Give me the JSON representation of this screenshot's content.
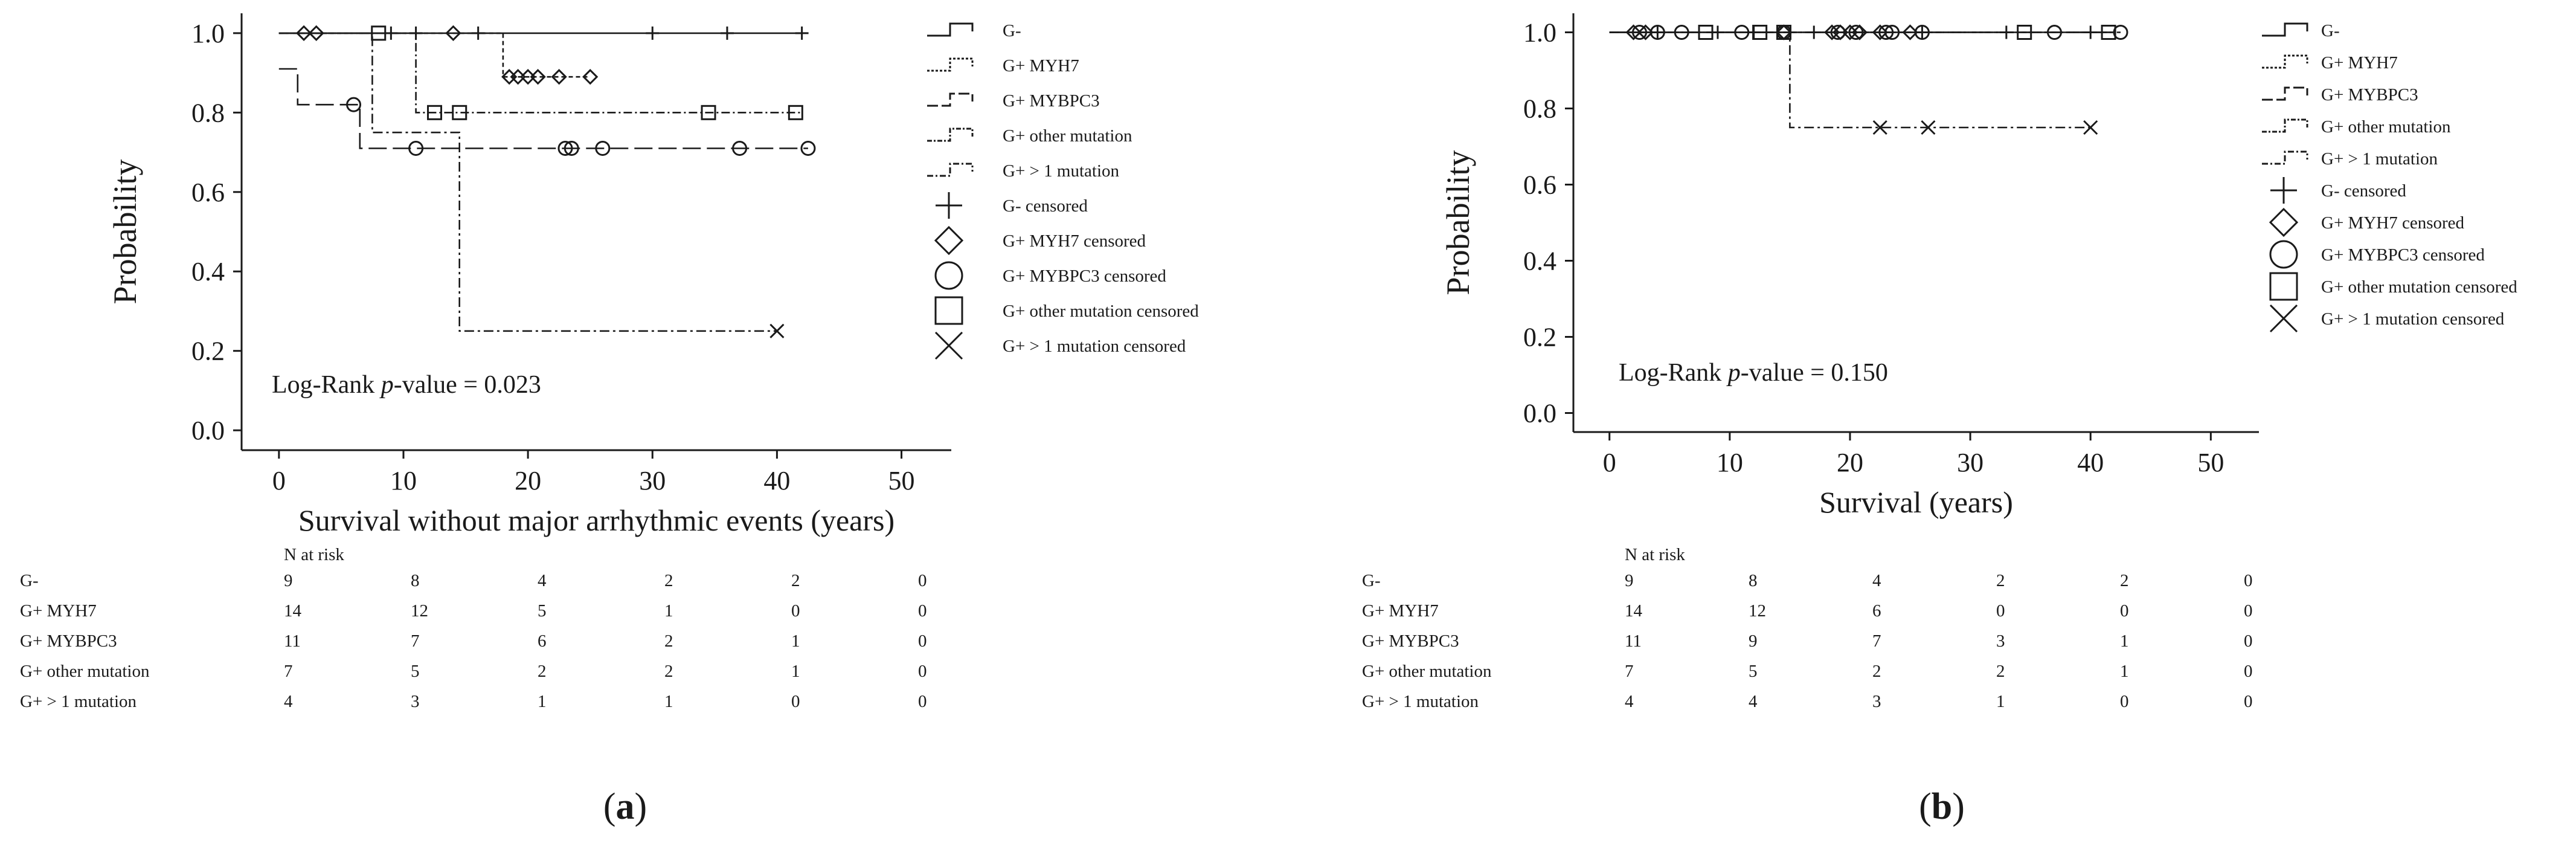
{
  "chart_data": [
    {
      "type": "line",
      "panel_label": "a",
      "xlabel": "Survival without major arrhythmic events (years)",
      "ylabel": "Probability",
      "xlim": [
        -3,
        54
      ],
      "ylim": [
        -0.05,
        1.05
      ],
      "xticks": [
        0,
        10,
        20,
        30,
        40,
        50
      ],
      "yticks": [
        0.0,
        0.2,
        0.4,
        0.6,
        0.8,
        1.0
      ],
      "ytick_labels": [
        "0.0",
        "0.2",
        "0.4",
        "0.6",
        "0.8",
        "1.0"
      ],
      "annotation": {
        "prefix": "Log-Rank ",
        "italic": "p",
        "suffix": "-value = 0.023"
      },
      "legend": [
        "G-",
        "G+ MYH7",
        "G+ MYBPC3",
        "G+ other mutation",
        "G+ > 1 mutation",
        "G- censored",
        "G+ MYH7 censored",
        "G+ MYBPC3 censored",
        "G+ other mutation censored",
        "G+ > 1 mutation censored"
      ],
      "series": [
        {
          "name": "G-",
          "dash": "",
          "x": [
            0,
            42
          ],
          "y": [
            1.0,
            1.0
          ],
          "censored": [
            [
              9,
              1.0
            ],
            [
              11,
              1.0
            ],
            [
              16,
              1.0
            ],
            [
              30,
              1.0
            ],
            [
              36,
              1.0
            ],
            [
              42,
              1.0
            ]
          ],
          "marker": "plus"
        },
        {
          "name": "G+ MYH7",
          "dash": "7 5",
          "x": [
            0,
            18,
            18,
            25
          ],
          "y": [
            1.0,
            1.0,
            0.89,
            0.89
          ],
          "censored": [
            [
              2,
              1.0
            ],
            [
              3,
              1.0
            ],
            [
              14,
              1.0
            ],
            [
              18.5,
              0.89
            ],
            [
              19.2,
              0.89
            ],
            [
              20.0,
              0.89
            ],
            [
              20.8,
              0.89
            ],
            [
              22.5,
              0.89
            ],
            [
              25.0,
              0.89
            ]
          ],
          "marker": "diamond"
        },
        {
          "name": "G+ MYBPC3",
          "dash": "30 10",
          "x": [
            0,
            1.5,
            1.5,
            6.5,
            6.5,
            42.5
          ],
          "y": [
            0.91,
            0.91,
            0.82,
            0.82,
            0.71,
            0.71
          ],
          "censored": [
            [
              6,
              0.82
            ],
            [
              11,
              0.71
            ],
            [
              23,
              0.71
            ],
            [
              23.5,
              0.71
            ],
            [
              26,
              0.71
            ],
            [
              37,
              0.71
            ],
            [
              42.5,
              0.71
            ]
          ],
          "marker": "circle"
        },
        {
          "name": "G+ other mutation",
          "dash": "14 5 3 5",
          "x": [
            0,
            11,
            11,
            42
          ],
          "y": [
            1.0,
            1.0,
            0.8,
            0.8
          ],
          "censored": [
            [
              8,
              1.0
            ],
            [
              12.5,
              0.8
            ],
            [
              14.5,
              0.8
            ],
            [
              34.5,
              0.8
            ],
            [
              41.5,
              0.8
            ]
          ],
          "marker": "square"
        },
        {
          "name": "G+ > 1 mutation",
          "dash": "16 6 4 6",
          "x": [
            0,
            7.5,
            7.5,
            14.5,
            14.5,
            40
          ],
          "y": [
            1.0,
            1.0,
            0.75,
            0.75,
            0.25,
            0.25
          ],
          "censored": [
            [
              40,
              0.25
            ]
          ],
          "marker": "x"
        }
      ],
      "risk_table": {
        "header": "N at risk",
        "rows": [
          {
            "group": "G-",
            "values": [
              "9",
              "8",
              "4",
              "2",
              "2",
              "0"
            ]
          },
          {
            "group": "G+ MYH7",
            "values": [
              "14",
              "12",
              "5",
              "1",
              "0",
              "0"
            ]
          },
          {
            "group": "G+ MYBPC3",
            "values": [
              "11",
              "7",
              "6",
              "2",
              "1",
              "0"
            ]
          },
          {
            "group": "G+ other mutation",
            "values": [
              "7",
              "5",
              "2",
              "2",
              "1",
              "0"
            ]
          },
          {
            "group": "G+ > 1 mutation",
            "values": [
              "4",
              "3",
              "1",
              "1",
              "0",
              "0"
            ]
          }
        ]
      }
    },
    {
      "type": "line",
      "panel_label": "b",
      "xlabel": "Survival (years)",
      "ylabel": "Probability",
      "xlim": [
        -3,
        54
      ],
      "ylim": [
        -0.05,
        1.05
      ],
      "xticks": [
        0,
        10,
        20,
        30,
        40,
        50
      ],
      "yticks": [
        0.0,
        0.2,
        0.4,
        0.6,
        0.8,
        1.0
      ],
      "ytick_labels": [
        "0.0",
        "0.2",
        "0.4",
        "0.6",
        "0.8",
        "1.0"
      ],
      "annotation": {
        "prefix": "Log-Rank ",
        "italic": "p",
        "suffix": "-value = 0.150"
      },
      "legend": [
        "G-",
        "G+ MYH7",
        "G+ MYBPC3",
        "G+ other mutation",
        "G+ > 1 mutation",
        "G- censored",
        "G+ MYH7 censored",
        "G+ MYBPC3 censored",
        "G+ other mutation censored",
        "G+ > 1 mutation censored"
      ],
      "series": [
        {
          "name": "G-",
          "dash": "",
          "x": [
            0,
            42
          ],
          "y": [
            1.0,
            1.0
          ],
          "censored": [
            [
              4,
              1.0
            ],
            [
              9,
              1.0
            ],
            [
              12,
              1.0
            ],
            [
              17,
              1.0
            ],
            [
              26,
              1.0
            ],
            [
              33,
              1.0
            ],
            [
              40,
              1.0
            ]
          ],
          "marker": "plus"
        },
        {
          "name": "G+ MYH7",
          "dash": "7 5",
          "x": [
            0,
            42
          ],
          "y": [
            1.0,
            1.0
          ],
          "censored": [
            [
              2,
              1.0
            ],
            [
              3,
              1.0
            ],
            [
              14.5,
              1.0
            ],
            [
              18.5,
              1.0
            ],
            [
              19.2,
              1.0
            ],
            [
              20.0,
              1.0
            ],
            [
              20.8,
              1.0
            ],
            [
              22.5,
              1.0
            ],
            [
              25.0,
              1.0
            ]
          ],
          "marker": "diamond"
        },
        {
          "name": "G+ MYBPC3",
          "dash": "30 10",
          "x": [
            0,
            42.5
          ],
          "y": [
            1.0,
            1.0
          ],
          "censored": [
            [
              2.5,
              1.0
            ],
            [
              4,
              1.0
            ],
            [
              6,
              1.0
            ],
            [
              11,
              1.0
            ],
            [
              14.5,
              1.0
            ],
            [
              19,
              1.0
            ],
            [
              20.5,
              1.0
            ],
            [
              23,
              1.0
            ],
            [
              23.5,
              1.0
            ],
            [
              26,
              1.0
            ],
            [
              37,
              1.0
            ],
            [
              42.5,
              1.0
            ]
          ],
          "marker": "circle"
        },
        {
          "name": "G+ other mutation",
          "dash": "14 5 3 5",
          "x": [
            0,
            42
          ],
          "y": [
            1.0,
            1.0
          ],
          "censored": [
            [
              8,
              1.0
            ],
            [
              12.5,
              1.0
            ],
            [
              14.5,
              1.0
            ],
            [
              34.5,
              1.0
            ],
            [
              41.5,
              1.0
            ]
          ],
          "marker": "square"
        },
        {
          "name": "G+ > 1 mutation",
          "dash": "16 6 4 6",
          "x": [
            0,
            15,
            15,
            40
          ],
          "y": [
            1.0,
            1.0,
            0.75,
            0.75
          ],
          "censored": [
            [
              22.5,
              0.75
            ],
            [
              26.5,
              0.75
            ],
            [
              40,
              0.75
            ]
          ],
          "marker": "x"
        }
      ],
      "risk_table": {
        "header": "N at risk",
        "rows": [
          {
            "group": "G-",
            "values": [
              "9",
              "8",
              "4",
              "2",
              "2",
              "0"
            ]
          },
          {
            "group": "G+ MYH7",
            "values": [
              "14",
              "12",
              "6",
              "0",
              "0",
              "0"
            ]
          },
          {
            "group": "G+ MYBPC3",
            "values": [
              "11",
              "9",
              "7",
              "3",
              "1",
              "0"
            ]
          },
          {
            "group": "G+ other mutation",
            "values": [
              "7",
              "5",
              "2",
              "2",
              "1",
              "0"
            ]
          },
          {
            "group": "G+ > 1 mutation",
            "values": [
              "4",
              "4",
              "3",
              "1",
              "0",
              "0"
            ]
          }
        ]
      }
    }
  ]
}
